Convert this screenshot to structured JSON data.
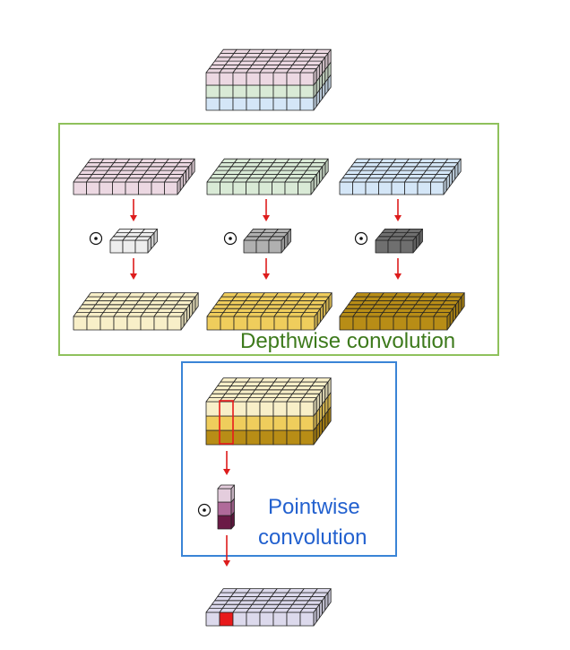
{
  "diagram": {
    "depthwise_label": "Depthwise convolution",
    "pointwise_label_line1": "Pointwise",
    "pointwise_label_line2": "convolution",
    "operator_symbol": "⊙",
    "colors": {
      "pink": "#ecd8e2",
      "green": "#d9ead6",
      "blue": "#d4e6f7",
      "light_gray": "#eeeeee",
      "mid_gray": "#b0b0b0",
      "dark_gray": "#6f6f6f",
      "cream": "#f8efc8",
      "gold": "#efcd5c",
      "dark_gold": "#b88d16",
      "lavender": "#dcd9ec",
      "highlight_red": "#e8191b",
      "arrow_red": "#dd1c1c",
      "depthwise_box": "#8fc15c",
      "pointwise_box": "#3a84d6",
      "kernel_pink_light": "#e4cddd",
      "kernel_pink_mid": "#b06a9a",
      "kernel_pink_dark": "#6b1a46"
    }
  }
}
